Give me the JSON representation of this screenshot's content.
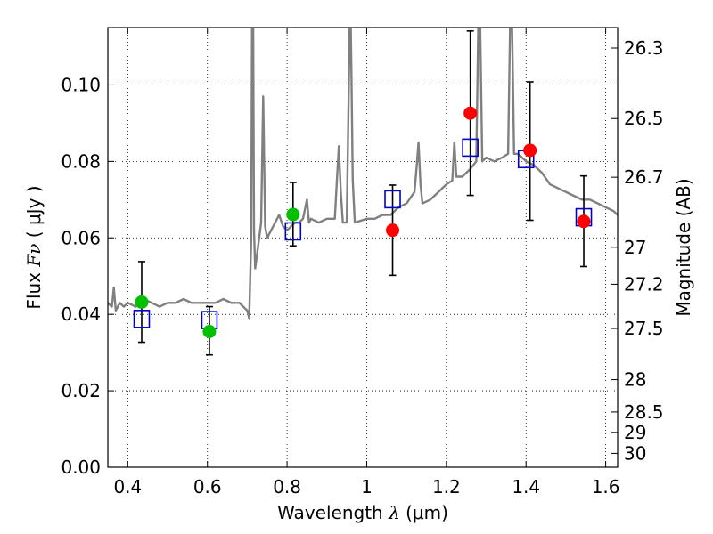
{
  "chart_data": {
    "type": "scatter",
    "xlabel": "Wavelength",
    "xlabel_symbol": "λ",
    "xlabel_unit": "(μm)",
    "ylabel": "Flux",
    "ylabel_symbol": "Fν",
    "ylabel_unit": "( μJy )",
    "y2label": "Magnitude (AB)",
    "xlim": [
      0.35,
      1.63
    ],
    "ylim": [
      0.0,
      0.115
    ],
    "grid": true,
    "grid_style": "dotted",
    "x_ticks": [
      0.4,
      0.6,
      0.8,
      1.0,
      1.2,
      1.4,
      1.6
    ],
    "x_tick_labels": [
      "0.4",
      "0.6",
      "0.8",
      "1",
      "1.2",
      "1.4",
      "1.6"
    ],
    "y_ticks": [
      0.0,
      0.02,
      0.04,
      0.06,
      0.08,
      0.1
    ],
    "y_tick_labels": [
      "0.00",
      "0.02",
      "0.04",
      "0.06",
      "0.08",
      "0.10"
    ],
    "y2_ticks": [
      26.3,
      26.5,
      26.7,
      27,
      27.2,
      27.5,
      28,
      28.5,
      29,
      30
    ],
    "y2_tick_labels": [
      "26.3",
      "26.5",
      "26.7",
      "27",
      "27.2",
      "27.5",
      "28",
      "28.5",
      "29",
      "30"
    ],
    "colors": {
      "spectrum": "#808080",
      "green": "#00c000",
      "red": "#ff0000",
      "model": "#0000cc",
      "errorbar": "#000000"
    },
    "spectrum": {
      "x": [
        0.35,
        0.36,
        0.365,
        0.37,
        0.38,
        0.39,
        0.4,
        0.42,
        0.44,
        0.46,
        0.48,
        0.5,
        0.52,
        0.54,
        0.56,
        0.58,
        0.6,
        0.62,
        0.64,
        0.66,
        0.68,
        0.7,
        0.705,
        0.71,
        0.712,
        0.715,
        0.717,
        0.72,
        0.725,
        0.73,
        0.735,
        0.74,
        0.745,
        0.75,
        0.76,
        0.77,
        0.78,
        0.79,
        0.8,
        0.81,
        0.82,
        0.83,
        0.84,
        0.85,
        0.855,
        0.86,
        0.88,
        0.9,
        0.92,
        0.925,
        0.93,
        0.935,
        0.94,
        0.95,
        0.955,
        0.957,
        0.96,
        0.962,
        0.965,
        0.97,
        1.0,
        1.02,
        1.04,
        1.06,
        1.08,
        1.1,
        1.12,
        1.125,
        1.13,
        1.135,
        1.14,
        1.16,
        1.18,
        1.2,
        1.215,
        1.22,
        1.225,
        1.24,
        1.26,
        1.275,
        1.28,
        1.285,
        1.29,
        1.3,
        1.32,
        1.34,
        1.355,
        1.36,
        1.365,
        1.37,
        1.38,
        1.4,
        1.42,
        1.44,
        1.46,
        1.48,
        1.5,
        1.52,
        1.54,
        1.56,
        1.58,
        1.6,
        1.62,
        1.63
      ],
      "y": [
        0.043,
        0.042,
        0.047,
        0.041,
        0.043,
        0.042,
        0.043,
        0.042,
        0.044,
        0.043,
        0.042,
        0.043,
        0.043,
        0.044,
        0.043,
        0.043,
        0.043,
        0.043,
        0.044,
        0.043,
        0.043,
        0.041,
        0.039,
        0.06,
        0.115,
        0.115,
        0.062,
        0.052,
        0.056,
        0.06,
        0.064,
        0.097,
        0.063,
        0.06,
        0.062,
        0.064,
        0.066,
        0.063,
        0.062,
        0.063,
        0.064,
        0.064,
        0.065,
        0.07,
        0.064,
        0.065,
        0.064,
        0.065,
        0.065,
        0.075,
        0.084,
        0.072,
        0.064,
        0.064,
        0.1,
        0.115,
        0.115,
        0.1,
        0.075,
        0.064,
        0.065,
        0.065,
        0.066,
        0.066,
        0.068,
        0.069,
        0.072,
        0.078,
        0.085,
        0.074,
        0.069,
        0.07,
        0.072,
        0.074,
        0.075,
        0.085,
        0.076,
        0.076,
        0.078,
        0.08,
        0.115,
        0.115,
        0.08,
        0.081,
        0.08,
        0.081,
        0.082,
        0.115,
        0.115,
        0.082,
        0.082,
        0.08,
        0.079,
        0.077,
        0.074,
        0.073,
        0.072,
        0.071,
        0.07,
        0.07,
        0.069,
        0.068,
        0.067,
        0.066
      ]
    },
    "green_points": [
      {
        "x": 0.435,
        "y": 0.0432
      },
      {
        "x": 0.605,
        "y": 0.0355
      },
      {
        "x": 0.815,
        "y": 0.0661
      }
    ],
    "red_points": [
      {
        "x": 1.065,
        "y": 0.062
      },
      {
        "x": 1.26,
        "y": 0.0926
      },
      {
        "x": 1.41,
        "y": 0.0829
      },
      {
        "x": 1.545,
        "y": 0.0643
      }
    ],
    "model_squares": [
      {
        "x": 0.435,
        "y": 0.0388
      },
      {
        "x": 0.605,
        "y": 0.0385
      },
      {
        "x": 0.815,
        "y": 0.0617
      },
      {
        "x": 1.065,
        "y": 0.0701
      },
      {
        "x": 1.26,
        "y": 0.0836
      },
      {
        "x": 1.4,
        "y": 0.0806
      },
      {
        "x": 1.545,
        "y": 0.0654
      }
    ],
    "error_bars": [
      {
        "x": 0.435,
        "low": 0.0327,
        "high": 0.0538
      },
      {
        "x": 0.605,
        "low": 0.0294,
        "high": 0.042
      },
      {
        "x": 0.815,
        "low": 0.0579,
        "high": 0.0745
      },
      {
        "x": 1.065,
        "low": 0.0502,
        "high": 0.0738
      },
      {
        "x": 1.26,
        "low": 0.0711,
        "high": 0.1141
      },
      {
        "x": 1.41,
        "low": 0.0646,
        "high": 0.1008
      },
      {
        "x": 1.545,
        "low": 0.0525,
        "high": 0.0762
      }
    ]
  }
}
